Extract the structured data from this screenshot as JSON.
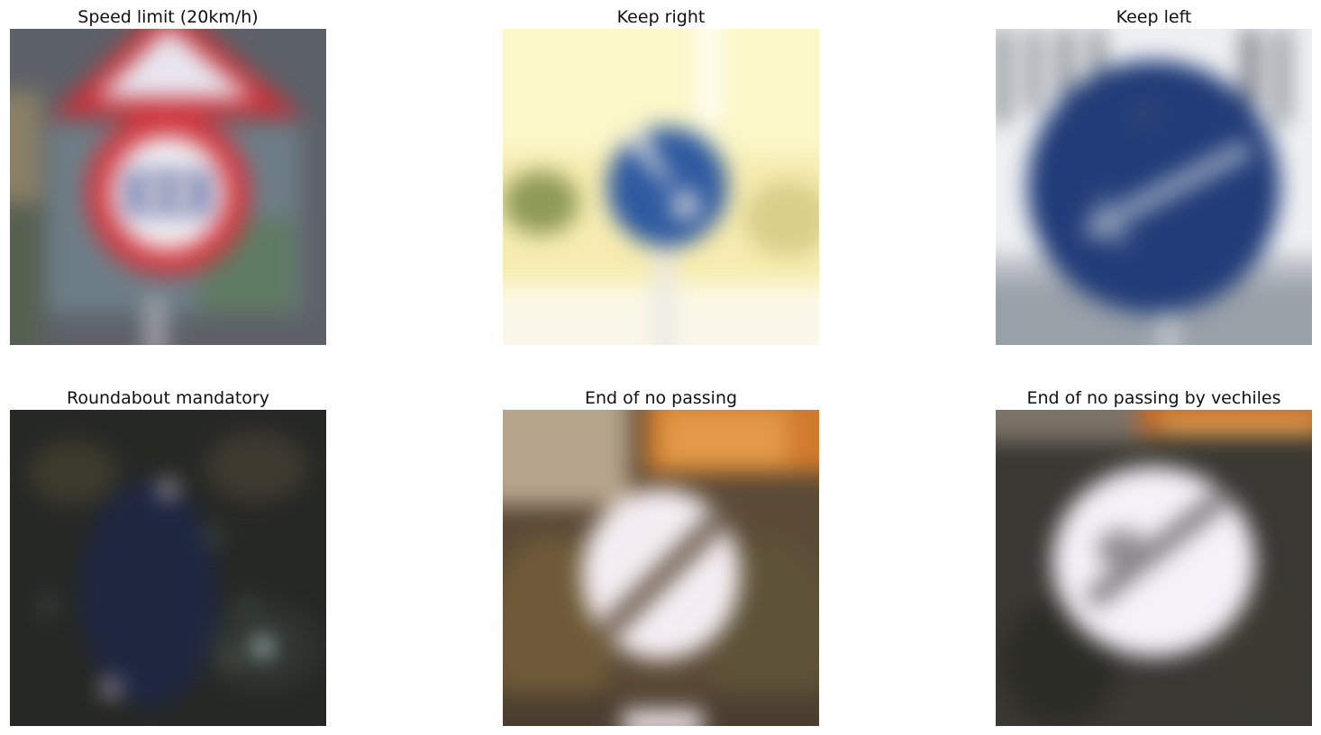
{
  "panels": [
    {
      "title": "Speed limit (20km/h)",
      "sign": "speed-limit-sign"
    },
    {
      "title": "Keep right",
      "sign": "keep-right-sign"
    },
    {
      "title": "Keep left",
      "sign": "keep-left-sign"
    },
    {
      "title": "Roundabout mandatory",
      "sign": "roundabout-sign"
    },
    {
      "title": "End of no passing",
      "sign": "end-no-passing-sign"
    },
    {
      "title": "End of no passing by vechiles",
      "sign": "end-no-passing-vehicles-sign"
    }
  ]
}
